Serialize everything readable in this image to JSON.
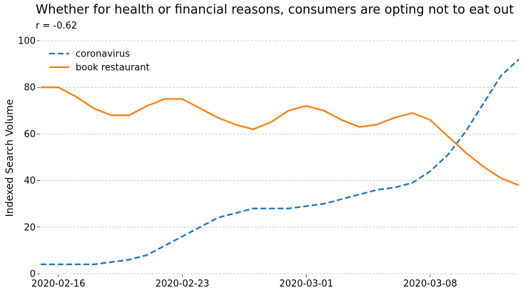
{
  "chart_data": {
    "type": "line",
    "title": "Whether for health or financial reasons, consumers are opting not to eat out",
    "subtitle": "r = -0.62",
    "xlabel": "",
    "ylabel": "Indexed Search Volume",
    "ylim": [
      0,
      100
    ],
    "yticks": [
      0,
      20,
      40,
      60,
      80,
      100
    ],
    "xlim": [
      "2020-02-15",
      "2020-03-13"
    ],
    "xticks": [
      "2020-02-16",
      "2020-02-23",
      "2020-03-01",
      "2020-03-08"
    ],
    "grid": "horizontal",
    "legend_position": "top-left",
    "x": [
      "2020-02-15",
      "2020-02-16",
      "2020-02-17",
      "2020-02-18",
      "2020-02-19",
      "2020-02-20",
      "2020-02-21",
      "2020-02-22",
      "2020-02-23",
      "2020-02-24",
      "2020-02-25",
      "2020-02-26",
      "2020-02-27",
      "2020-02-28",
      "2020-02-29",
      "2020-03-01",
      "2020-03-02",
      "2020-03-03",
      "2020-03-04",
      "2020-03-05",
      "2020-03-06",
      "2020-03-07",
      "2020-03-08",
      "2020-03-09",
      "2020-03-10",
      "2020-03-11",
      "2020-03-12",
      "2020-03-13"
    ],
    "series": [
      {
        "name": "coronavirus",
        "color": "#1f77b4",
        "dash": "dashed",
        "values": [
          4,
          4,
          4,
          4,
          5,
          6,
          8,
          12,
          16,
          20,
          24,
          26,
          28,
          28,
          28,
          29,
          30,
          32,
          34,
          36,
          37,
          39,
          44,
          51,
          61,
          73,
          85,
          92
        ]
      },
      {
        "name": "book restaurant",
        "color": "#ff7f0e",
        "dash": "solid",
        "values": [
          80,
          80,
          76,
          71,
          68,
          68,
          72,
          75,
          75,
          71,
          67,
          64,
          62,
          65,
          70,
          72,
          70,
          66,
          63,
          64,
          67,
          69,
          66,
          59,
          52,
          46,
          41,
          38
        ]
      }
    ]
  }
}
